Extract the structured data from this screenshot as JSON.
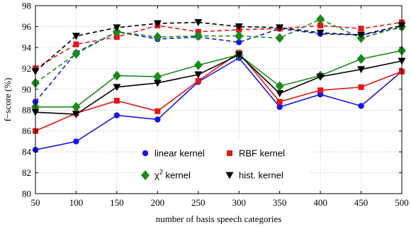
{
  "chart_data": {
    "type": "line",
    "xlabel": "number of basis speech categories",
    "ylabel": "f−score (%)",
    "x": [
      50,
      100,
      150,
      200,
      250,
      300,
      350,
      400,
      450,
      500
    ],
    "xlim": [
      50,
      500
    ],
    "ylim": [
      80,
      98
    ],
    "xticks": [
      "50",
      "100",
      "150",
      "200",
      "250",
      "300",
      "350",
      "400",
      "450",
      "500"
    ],
    "yticks": [
      "80",
      "82",
      "84",
      "86",
      "88",
      "90",
      "92",
      "94",
      "96",
      "98"
    ],
    "grid": true,
    "legend_position": "bottom-center",
    "legend": [
      {
        "key": "linear",
        "label": "linear kernel",
        "sup": ""
      },
      {
        "key": "rbf",
        "label": "RBF kernel",
        "sup": ""
      },
      {
        "key": "chi2",
        "label": "χ",
        "sup": "2",
        "suffix": " kernel"
      },
      {
        "key": "hist",
        "label": "hist. kernel",
        "sup": ""
      }
    ],
    "series": [
      {
        "key": "linear",
        "style": "solid",
        "color": "#1515e6",
        "marker": "circle",
        "values": [
          84.2,
          85.0,
          87.5,
          87.1,
          90.7,
          93.0,
          88.3,
          89.5,
          88.4,
          91.7
        ]
      },
      {
        "key": "rbf",
        "style": "solid",
        "color": "#e61515",
        "marker": "square",
        "values": [
          86.0,
          87.7,
          88.9,
          87.9,
          90.8,
          93.5,
          88.8,
          89.9,
          90.2,
          91.7
        ]
      },
      {
        "key": "chi2",
        "style": "solid",
        "color": "#1a8a1a",
        "marker": "diamond",
        "values": [
          88.3,
          88.3,
          91.3,
          91.2,
          92.3,
          93.3,
          90.3,
          91.3,
          92.9,
          93.7
        ]
      },
      {
        "key": "hist",
        "style": "solid",
        "color": "#000000",
        "marker": "triangle",
        "values": [
          87.8,
          87.6,
          90.2,
          90.6,
          91.4,
          93.3,
          89.6,
          91.2,
          91.9,
          92.7
        ]
      },
      {
        "key": "linear",
        "style": "dashed",
        "color": "#1515e6",
        "marker": "circle",
        "values": [
          88.8,
          93.5,
          95.5,
          94.8,
          95.0,
          94.5,
          95.8,
          95.3,
          95.2,
          95.9
        ]
      },
      {
        "key": "rbf",
        "style": "dashed",
        "color": "#e61515",
        "marker": "square",
        "values": [
          92.0,
          94.3,
          95.0,
          96.1,
          95.5,
          95.7,
          95.8,
          96.1,
          95.8,
          96.4
        ]
      },
      {
        "key": "chi2",
        "style": "dashed",
        "color": "#1a8a1a",
        "marker": "diamond",
        "values": [
          90.6,
          93.4,
          95.5,
          95.0,
          95.1,
          95.1,
          94.9,
          96.7,
          94.9,
          96.0
        ]
      },
      {
        "key": "hist",
        "style": "dashed",
        "color": "#000000",
        "marker": "triangle",
        "values": [
          91.7,
          95.1,
          95.9,
          96.3,
          96.4,
          96.0,
          95.9,
          95.4,
          95.2,
          96.1
        ]
      }
    ]
  }
}
